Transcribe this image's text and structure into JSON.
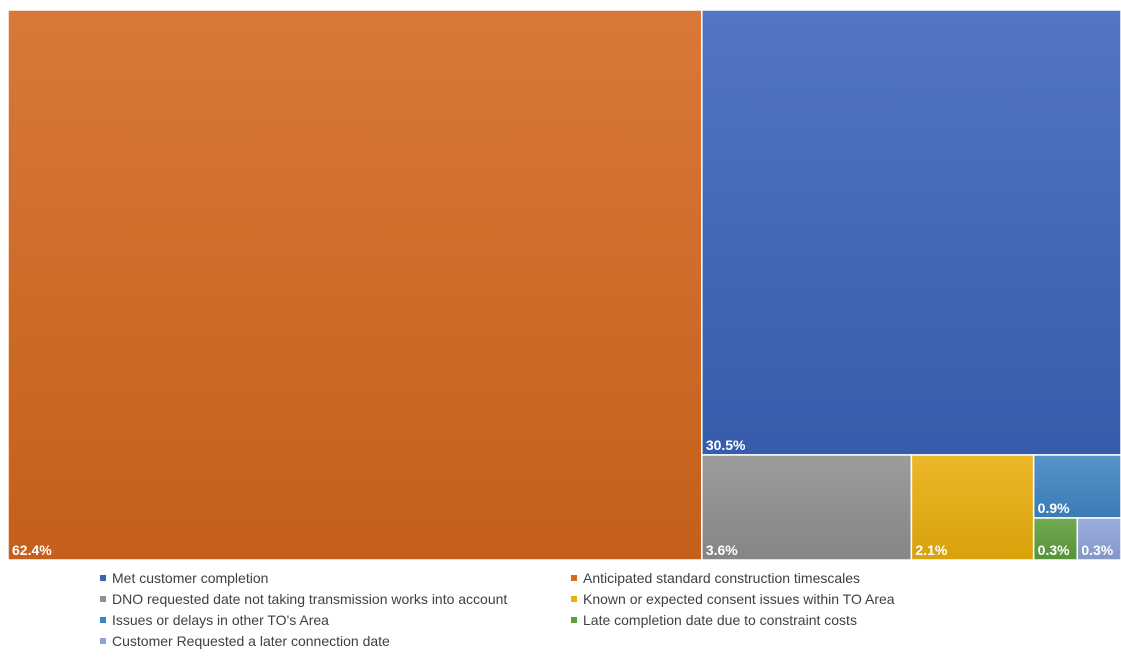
{
  "chart_data": {
    "type": "treemap",
    "items": [
      {
        "name": "Anticipated standard construction timescales",
        "value": 62.4,
        "label": "62.4%",
        "color": "#D4661D"
      },
      {
        "name": "Met customer completion",
        "value": 30.5,
        "label": "30.5%",
        "color": "#3A63B8"
      },
      {
        "name": "DNO requested date not taking transmission works into account",
        "value": 3.6,
        "label": "3.6%",
        "color": "#8F8F8F"
      },
      {
        "name": "Known or expected consent issues within TO Area",
        "value": 2.1,
        "label": "2.1%",
        "color": "#E9AD0C"
      },
      {
        "name": "Issues or delays in other TO's Area",
        "value": 0.9,
        "label": "0.9%",
        "color": "#3F84C4"
      },
      {
        "name": "Late completion date due to constraint costs",
        "value": 0.3,
        "label": "0.3%",
        "color": "#5C9E3B"
      },
      {
        "name": "Customer Requested a later connection date",
        "value": 0.3,
        "label": "0.3%",
        "color": "#8DA2D6"
      }
    ],
    "legend": [
      {
        "label": "Met customer completion",
        "color": "#3A63B8"
      },
      {
        "label": "Anticipated standard construction timescales",
        "color": "#D4661D"
      },
      {
        "label": "DNO requested date not taking transmission works into account",
        "color": "#8F8F8F"
      },
      {
        "label": "Known or expected consent issues within TO Area",
        "color": "#E9AD0C"
      },
      {
        "label": "Issues or delays in other TO's Area",
        "color": "#3F84C4"
      },
      {
        "label": "Late completion date due to constraint costs",
        "color": "#5C9E3B"
      },
      {
        "label": "Customer Requested a later connection date",
        "color": "#8DA2D6"
      }
    ],
    "legend_position": "bottom"
  }
}
